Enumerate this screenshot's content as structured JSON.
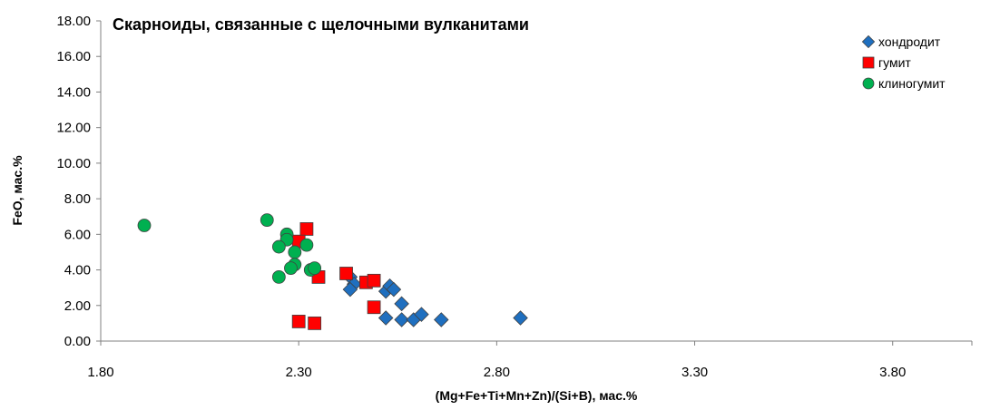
{
  "chart_data": {
    "type": "scatter",
    "title": "Скарноиды, связанные с щелочными вулканитами",
    "xlabel": "(Mg+Fe+Ti+Mn+Zn)/(Si+B), мас.%",
    "ylabel": "FeO, мас.%",
    "xlim": [
      1.8,
      4.0
    ],
    "ylim": [
      0,
      18
    ],
    "xticks": [
      "1.80",
      "2.30",
      "2.80",
      "3.30",
      "3.80"
    ],
    "yticks": [
      "0.00",
      "2.00",
      "4.00",
      "6.00",
      "8.00",
      "10.00",
      "12.00",
      "14.00",
      "16.00",
      "18.00"
    ],
    "grid": false,
    "legend_position": "top-right",
    "series": [
      {
        "name": "хондродит",
        "marker": "diamond",
        "color": "#1f6fbf",
        "points": [
          [
            2.43,
            3.6
          ],
          [
            2.44,
            3.2
          ],
          [
            2.43,
            2.9
          ],
          [
            2.52,
            2.8
          ],
          [
            2.53,
            3.1
          ],
          [
            2.54,
            2.9
          ],
          [
            2.56,
            2.1
          ],
          [
            2.52,
            1.3
          ],
          [
            2.56,
            1.2
          ],
          [
            2.59,
            1.2
          ],
          [
            2.61,
            1.5
          ],
          [
            2.66,
            1.2
          ],
          [
            2.86,
            1.3
          ]
        ]
      },
      {
        "name": "гумит",
        "marker": "square",
        "color": "#ff0000",
        "points": [
          [
            2.32,
            6.3
          ],
          [
            2.3,
            5.6
          ],
          [
            2.42,
            3.8
          ],
          [
            2.47,
            3.3
          ],
          [
            2.49,
            3.4
          ],
          [
            2.35,
            3.6
          ],
          [
            2.49,
            1.9
          ],
          [
            2.3,
            1.1
          ],
          [
            2.34,
            1.0
          ]
        ]
      },
      {
        "name": "клиногумит",
        "marker": "circle",
        "color": "#00b050",
        "points": [
          [
            1.91,
            6.5
          ],
          [
            2.22,
            6.8
          ],
          [
            2.27,
            6.0
          ],
          [
            2.27,
            5.7
          ],
          [
            2.25,
            5.3
          ],
          [
            2.32,
            5.4
          ],
          [
            2.29,
            5.0
          ],
          [
            2.29,
            4.3
          ],
          [
            2.28,
            4.1
          ],
          [
            2.33,
            4.0
          ],
          [
            2.34,
            4.1
          ],
          [
            2.25,
            3.6
          ]
        ]
      }
    ]
  }
}
